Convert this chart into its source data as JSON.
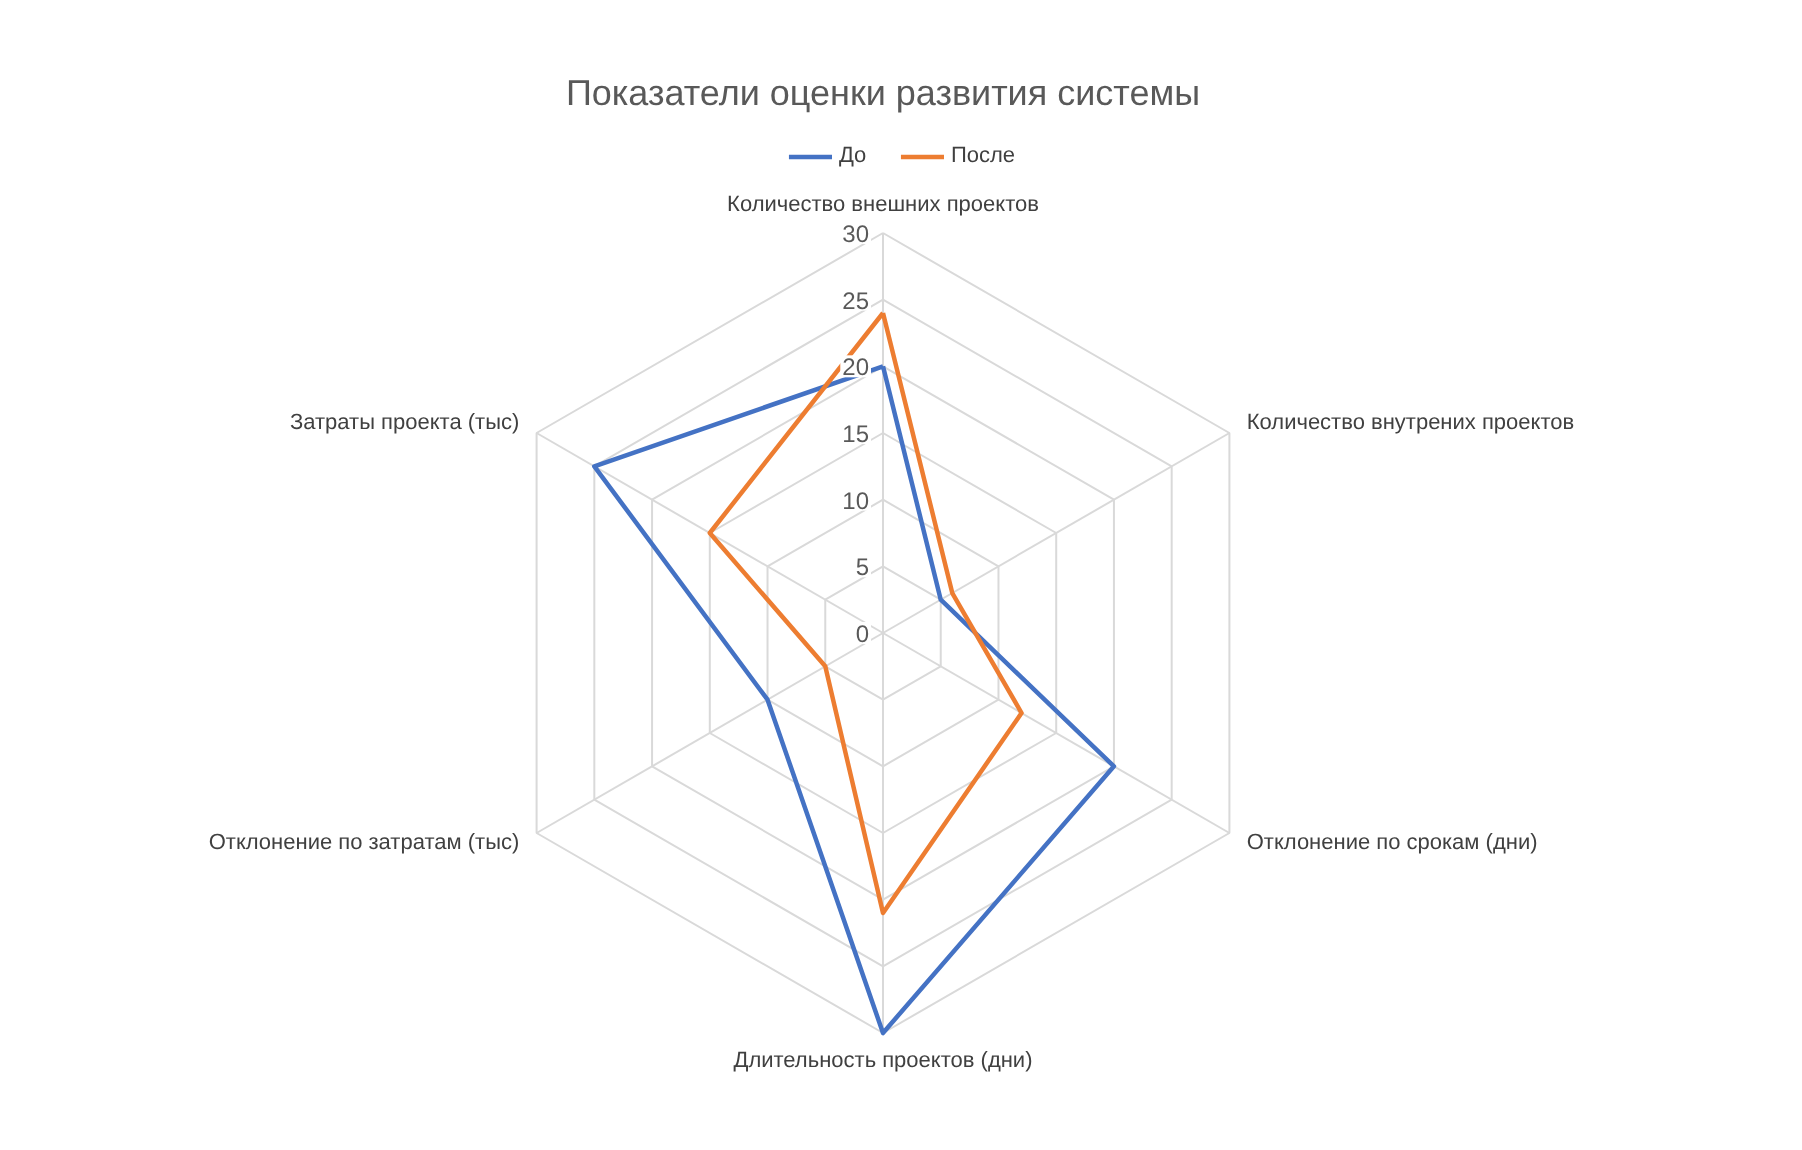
{
  "chart_data": {
    "type": "radar",
    "title": "Показатели оценки развития системы",
    "categories": [
      "Количество внешних проектов",
      "Количество внутрених проектов",
      "Отклонение по срокам (дни)",
      "Длительность проектов (дни)",
      "Отклонение по затратам (тыс)",
      "Затраты проекта (тыс)"
    ],
    "series": [
      {
        "name": "До",
        "color": "#4472c4",
        "values": [
          20,
          5,
          20,
          30,
          10,
          25
        ]
      },
      {
        "name": "После",
        "color": "#ed7d31",
        "values": [
          24,
          6,
          12,
          21,
          5,
          15
        ]
      }
    ],
    "ylim": [
      0,
      30
    ],
    "yticks": [
      0,
      5,
      10,
      15,
      20,
      25,
      30
    ],
    "grid": true,
    "legend": "top"
  }
}
